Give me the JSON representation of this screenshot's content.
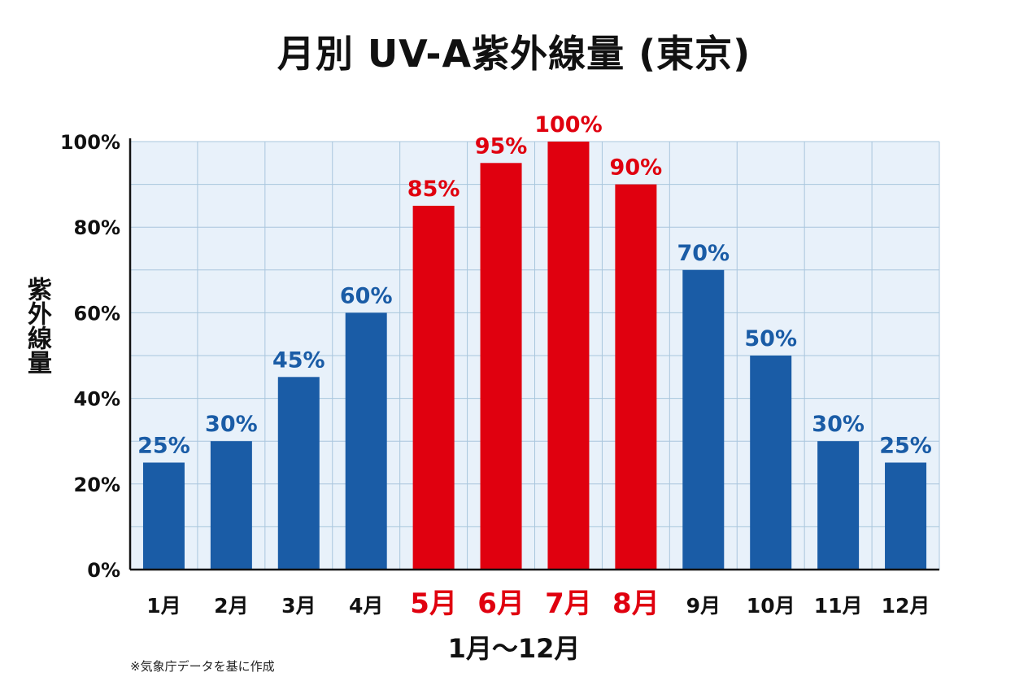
{
  "chart_data": {
    "type": "bar",
    "title": "月別 UV-A紫外線量 (東京)",
    "ylabel": "紫外線量",
    "xlabel": "1月〜12月",
    "categories": [
      "1月",
      "2月",
      "3月",
      "4月",
      "5月",
      "6月",
      "7月",
      "8月",
      "9月",
      "10月",
      "11月",
      "12月"
    ],
    "values": [
      25,
      30,
      45,
      60,
      85,
      95,
      100,
      90,
      70,
      50,
      30,
      25
    ],
    "value_labels": [
      "25%",
      "30%",
      "45%",
      "60%",
      "85%",
      "95%",
      "100%",
      "90%",
      "70%",
      "50%",
      "30%",
      "25%"
    ],
    "highlighted": [
      false,
      false,
      false,
      false,
      true,
      true,
      true,
      true,
      false,
      false,
      false,
      false
    ],
    "ylim": [
      0,
      100
    ],
    "yticks": [
      0,
      20,
      40,
      60,
      80,
      100
    ],
    "ytick_labels": [
      "0%",
      "20%",
      "40%",
      "60%",
      "80%",
      "100%"
    ],
    "grid": true,
    "colors": {
      "normal": "#1a5ca6",
      "highlight": "#e0000f",
      "normal_label": "#1a5ca6",
      "highlight_label": "#e0000f",
      "grid": "#a9c6dd",
      "plot_bg": "#e8f1fa",
      "axis": "#111111"
    }
  },
  "footnote": "※気象庁データを基に作成"
}
